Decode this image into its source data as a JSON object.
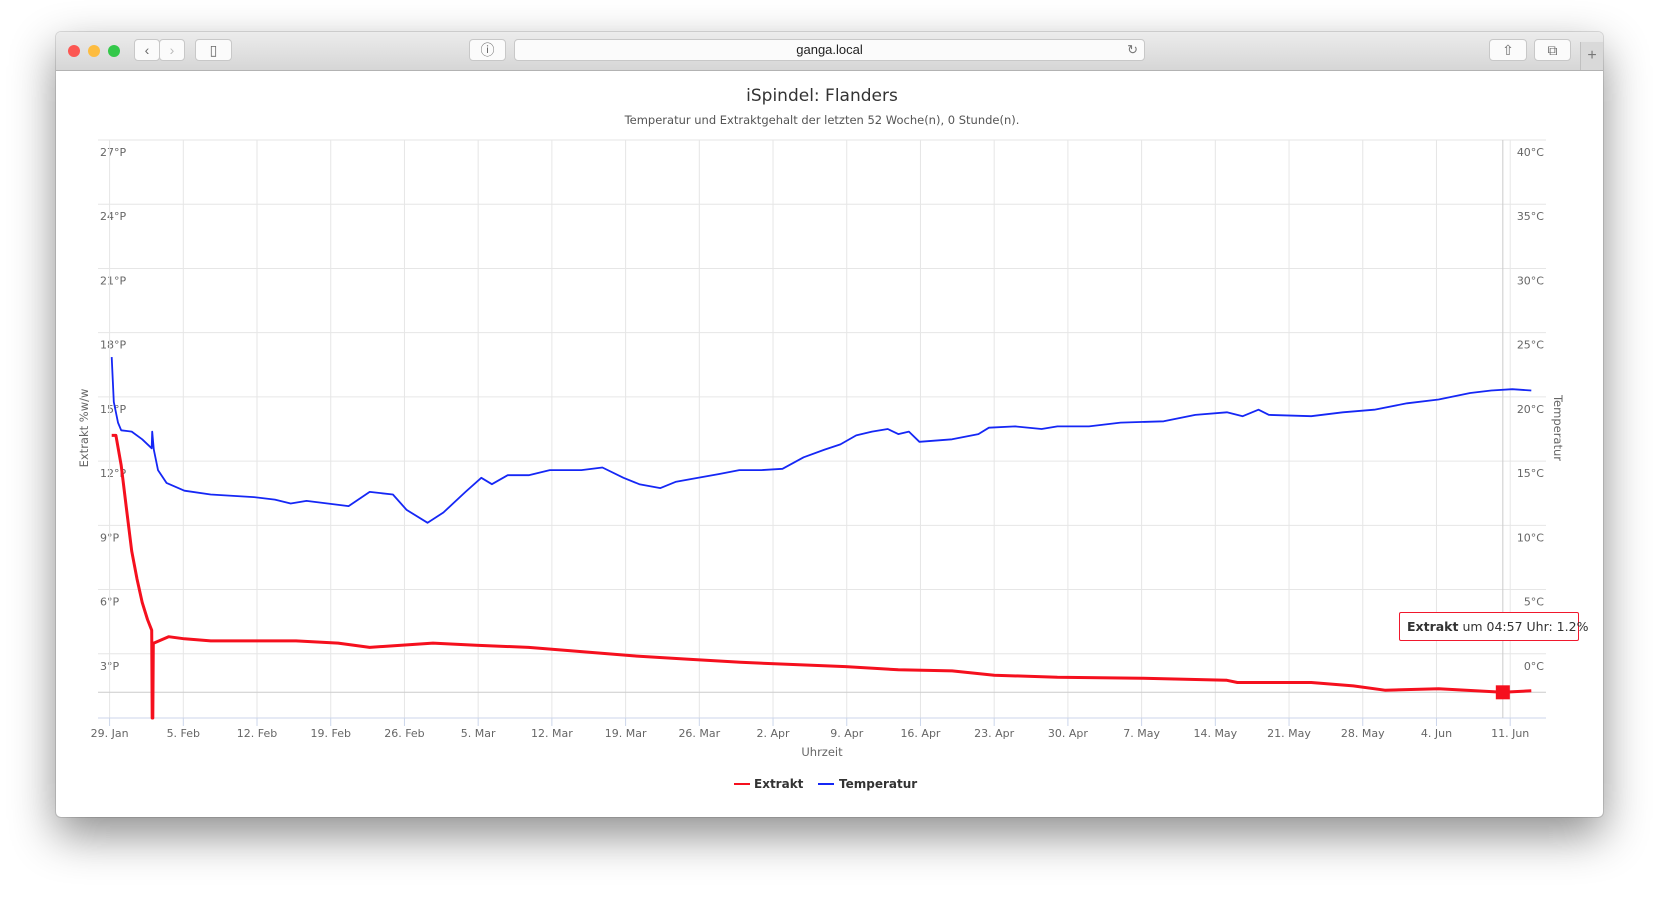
{
  "browser": {
    "url": "ganga.local"
  },
  "colors": {
    "extrakt": "#f5101e",
    "temperatur": "#1527f5"
  },
  "chart_data": {
    "type": "line",
    "title": "iSpindel: Flanders",
    "subtitle": "Temperatur und Extraktgehalt der letzten 52 Woche(n), 0 Stunde(n).",
    "xlabel": "Uhrzeit",
    "x_unit": "days since 29. Jan",
    "xlim": [
      -1.1,
      136.4
    ],
    "x_ticks": [
      {
        "day": 0,
        "label": "29. Jan"
      },
      {
        "day": 7,
        "label": "5. Feb"
      },
      {
        "day": 14,
        "label": "12. Feb"
      },
      {
        "day": 21,
        "label": "19. Feb"
      },
      {
        "day": 28,
        "label": "26. Feb"
      },
      {
        "day": 35,
        "label": "5. Mar"
      },
      {
        "day": 42,
        "label": "12. Mar"
      },
      {
        "day": 49,
        "label": "19. Mar"
      },
      {
        "day": 56,
        "label": "26. Mar"
      },
      {
        "day": 63,
        "label": "2. Apr"
      },
      {
        "day": 70,
        "label": "9. Apr"
      },
      {
        "day": 77,
        "label": "16. Apr"
      },
      {
        "day": 84,
        "label": "23. Apr"
      },
      {
        "day": 91,
        "label": "30. Apr"
      },
      {
        "day": 98,
        "label": "7. May"
      },
      {
        "day": 105,
        "label": "14. May"
      },
      {
        "day": 112,
        "label": "21. May"
      },
      {
        "day": 119,
        "label": "28. May"
      },
      {
        "day": 126,
        "label": "4. Jun"
      },
      {
        "day": 133,
        "label": "11. Jun"
      }
    ],
    "y_left": {
      "label": "Extrakt %w/w",
      "ylim": [
        0,
        27
      ],
      "ticks": [
        3,
        6,
        9,
        12,
        15,
        18,
        21,
        24,
        27
      ],
      "tick_labels": [
        "3°P",
        "6°P",
        "9°P",
        "12°P",
        "15°P",
        "18°P",
        "21°P",
        "24°P",
        "27°P"
      ]
    },
    "y_right": {
      "label": "Temperatur",
      "ylim": [
        -5,
        40
      ],
      "ticks": [
        0,
        5,
        10,
        15,
        20,
        25,
        30,
        35,
        40
      ],
      "tick_labels": [
        "0°C",
        "5°C",
        "10°C",
        "15°C",
        "20°C",
        "25°C",
        "30°C",
        "35°C",
        "40°C"
      ]
    },
    "legend": {
      "position": "bottom-center",
      "items": [
        "Extrakt",
        "Temperatur"
      ]
    },
    "series": [
      {
        "name": "Extrakt",
        "axis": "left",
        "points": [
          [
            0.2,
            13.2
          ],
          [
            0.6,
            13.2
          ],
          [
            1.1,
            11.8
          ],
          [
            1.6,
            9.8
          ],
          [
            2.1,
            7.8
          ],
          [
            2.6,
            6.5
          ],
          [
            3.1,
            5.4
          ],
          [
            3.6,
            4.6
          ],
          [
            4.0,
            4.1
          ],
          [
            4.05,
            0
          ],
          [
            4.1,
            0
          ],
          [
            4.15,
            3.5
          ],
          [
            4.2,
            3.5
          ],
          [
            5.6,
            3.8
          ],
          [
            7.1,
            3.7
          ],
          [
            9.6,
            3.6
          ],
          [
            13.7,
            3.6
          ],
          [
            17.7,
            3.6
          ],
          [
            21.7,
            3.5
          ],
          [
            24.7,
            3.3
          ],
          [
            27.7,
            3.4
          ],
          [
            30.7,
            3.5
          ],
          [
            34.8,
            3.4
          ],
          [
            39.8,
            3.3
          ],
          [
            44.8,
            3.1
          ],
          [
            49.8,
            2.9
          ],
          [
            54.8,
            2.75
          ],
          [
            59.9,
            2.6
          ],
          [
            64.9,
            2.5
          ],
          [
            69.9,
            2.4
          ],
          [
            74.9,
            2.25
          ],
          [
            80.0,
            2.2
          ],
          [
            84.0,
            2.0
          ],
          [
            90.0,
            1.9
          ],
          [
            98.0,
            1.86
          ],
          [
            106.1,
            1.76
          ],
          [
            107.1,
            1.66
          ],
          [
            114.1,
            1.66
          ],
          [
            118.1,
            1.5
          ],
          [
            121.1,
            1.3
          ],
          [
            126.2,
            1.37
          ],
          [
            132.3,
            1.2
          ],
          [
            135.0,
            1.27
          ]
        ]
      },
      {
        "name": "Temperatur",
        "axis": "right",
        "points": [
          [
            0.2,
            23.1
          ],
          [
            0.4,
            19.6
          ],
          [
            0.8,
            18.0
          ],
          [
            1.1,
            17.4
          ],
          [
            2.1,
            17.3
          ],
          [
            3.1,
            16.7
          ],
          [
            4.0,
            16.0
          ],
          [
            4.05,
            17.3
          ],
          [
            4.2,
            15.9
          ],
          [
            4.6,
            14.3
          ],
          [
            5.4,
            13.3
          ],
          [
            7.1,
            12.7
          ],
          [
            9.6,
            12.4
          ],
          [
            13.7,
            12.2
          ],
          [
            15.7,
            12.0
          ],
          [
            17.2,
            11.7
          ],
          [
            18.7,
            11.9
          ],
          [
            20.7,
            11.7
          ],
          [
            22.7,
            11.5
          ],
          [
            24.7,
            12.6
          ],
          [
            26.9,
            12.4
          ],
          [
            28.2,
            11.2
          ],
          [
            30.2,
            10.2
          ],
          [
            31.7,
            11.0
          ],
          [
            33.8,
            12.6
          ],
          [
            35.3,
            13.7
          ],
          [
            36.3,
            13.2
          ],
          [
            37.8,
            13.9
          ],
          [
            39.8,
            13.9
          ],
          [
            41.8,
            14.3
          ],
          [
            44.8,
            14.3
          ],
          [
            46.8,
            14.5
          ],
          [
            48.8,
            13.7
          ],
          [
            50.3,
            13.2
          ],
          [
            52.3,
            12.9
          ],
          [
            53.8,
            13.4
          ],
          [
            55.9,
            13.7
          ],
          [
            57.9,
            14.0
          ],
          [
            59.8,
            14.3
          ],
          [
            61.9,
            14.3
          ],
          [
            63.9,
            14.4
          ],
          [
            65.9,
            15.3
          ],
          [
            67.9,
            15.9
          ],
          [
            69.4,
            16.3
          ],
          [
            70.9,
            17.0
          ],
          [
            72.4,
            17.3
          ],
          [
            73.9,
            17.5
          ],
          [
            74.9,
            17.1
          ],
          [
            75.9,
            17.3
          ],
          [
            76.9,
            16.5
          ],
          [
            80.0,
            16.7
          ],
          [
            82.5,
            17.1
          ],
          [
            83.5,
            17.6
          ],
          [
            86.0,
            17.7
          ],
          [
            88.5,
            17.5
          ],
          [
            90.0,
            17.7
          ],
          [
            93.0,
            17.7
          ],
          [
            96.0,
            18.0
          ],
          [
            100.1,
            18.1
          ],
          [
            103.1,
            18.6
          ],
          [
            106.1,
            18.8
          ],
          [
            107.6,
            18.5
          ],
          [
            109.1,
            19.0
          ],
          [
            110.1,
            18.6
          ],
          [
            114.1,
            18.5
          ],
          [
            117.1,
            18.8
          ],
          [
            120.1,
            19.0
          ],
          [
            123.2,
            19.5
          ],
          [
            126.2,
            19.8
          ],
          [
            129.2,
            20.3
          ],
          [
            131.2,
            20.5
          ],
          [
            133.2,
            20.6
          ],
          [
            135.0,
            20.5
          ]
        ]
      }
    ],
    "crosshair": {
      "day": 132.3,
      "value": 1.2
    },
    "tooltip": {
      "series": "Extrakt",
      "middle": " um 04:57 Uhr: 1.2%"
    }
  }
}
